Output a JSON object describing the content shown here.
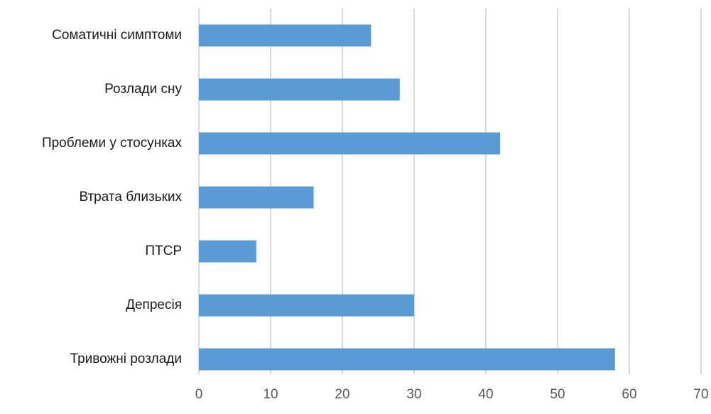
{
  "chart_data": {
    "type": "bar",
    "orientation": "horizontal",
    "categories": [
      "Соматичні симптоми",
      "Розлади сну",
      "Проблеми у стосунках",
      "Втрата близьких",
      "ПТСР",
      "Депресія",
      "Тривожні розлади"
    ],
    "values": [
      24,
      28,
      42,
      16,
      8,
      30,
      58
    ],
    "xlim": [
      0,
      70
    ],
    "xticks": [
      0,
      10,
      20,
      30,
      40,
      50,
      60,
      70
    ],
    "grid": true,
    "legend": "none",
    "bar_color": "#5b9bd5",
    "grid_color": "#d9d9d9",
    "title": "",
    "xlabel": "",
    "ylabel": ""
  }
}
